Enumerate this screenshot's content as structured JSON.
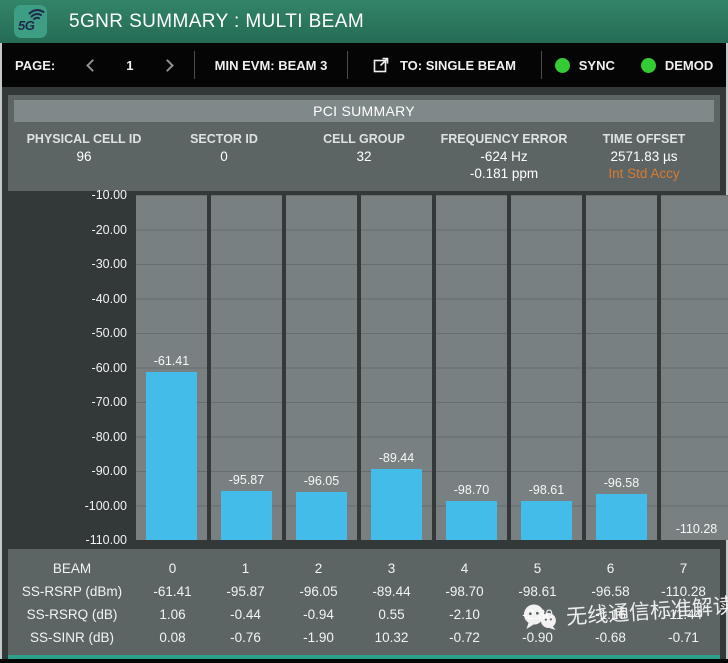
{
  "colors": {
    "titlebar_teal": "#2e8069",
    "bar_cyan": "#44bce9",
    "status_green": "#35cb35",
    "warning_orange": "#d97b2f",
    "panel_gray": "#5d6464",
    "chart_column_gray": "#798081"
  },
  "title_bar": {
    "title": "5GNR SUMMARY : MULTI BEAM",
    "logo_text": "5G"
  },
  "nav": {
    "page_label": "PAGE:",
    "page_value": "1",
    "min_evm": "MIN EVM: BEAM 3",
    "to_single_beam": "TO: SINGLE BEAM",
    "sync_label": "SYNC",
    "demod_label": "DEMOD"
  },
  "pci": {
    "header": "PCI SUMMARY",
    "fields": [
      {
        "label": "PHYSICAL CELL ID",
        "value": "96",
        "value2": ""
      },
      {
        "label": "SECTOR ID",
        "value": "0",
        "value2": ""
      },
      {
        "label": "CELL GROUP",
        "value": "32",
        "value2": ""
      },
      {
        "label": "FREQUENCY ERROR",
        "value": "-624 Hz",
        "value2": "-0.181 ppm"
      },
      {
        "label": "TIME OFFSET",
        "value": "2571.83 µs",
        "value2": "Int Std Accy",
        "value2_color": "#d97b2f"
      }
    ]
  },
  "chart_data": {
    "type": "bar",
    "title": "",
    "xlabel": "BEAM",
    "ylabel": "SS-RSRP (dBm)",
    "categories": [
      "0",
      "1",
      "2",
      "3",
      "4",
      "5",
      "6",
      "7"
    ],
    "values": [
      -61.41,
      -95.87,
      -96.05,
      -89.44,
      -98.7,
      -98.61,
      -96.58,
      -110.28
    ],
    "bar_labels": [
      "-61.41",
      "-95.87",
      "-96.05",
      "-89.44",
      "-98.70",
      "-98.61",
      "-96.58",
      "-110.28"
    ],
    "ylim": [
      -110,
      -10
    ],
    "y_ticks": [
      "-10.00",
      "-20.00",
      "-30.00",
      "-40.00",
      "-50.00",
      "-60.00",
      "-70.00",
      "-80.00",
      "-90.00",
      "-100.00",
      "-110.00"
    ],
    "grid": true,
    "legend": false,
    "bar_color": "#44bce9"
  },
  "table": {
    "rows": [
      {
        "label": "BEAM",
        "values": [
          "0",
          "1",
          "2",
          "3",
          "4",
          "5",
          "6",
          "7"
        ]
      },
      {
        "label": "SS-RSRP (dBm)",
        "values": [
          "-61.41",
          "-95.87",
          "-96.05",
          "-89.44",
          "-98.70",
          "-98.61",
          "-96.58",
          "-110.28"
        ]
      },
      {
        "label": "SS-RSRQ (dB)",
        "values": [
          "1.06",
          "-0.44",
          "-0.94",
          "0.55",
          "-2.10",
          "-2.30",
          "-1.16",
          "-11.44"
        ]
      },
      {
        "label": "SS-SINR (dB)",
        "values": [
          "0.08",
          "-0.76",
          "-1.90",
          "10.32",
          "-0.72",
          "-0.90",
          "-0.68",
          "-0.71"
        ]
      }
    ]
  },
  "watermark": {
    "text": "无线通信标准解读",
    "icon": "wechat-icon"
  }
}
